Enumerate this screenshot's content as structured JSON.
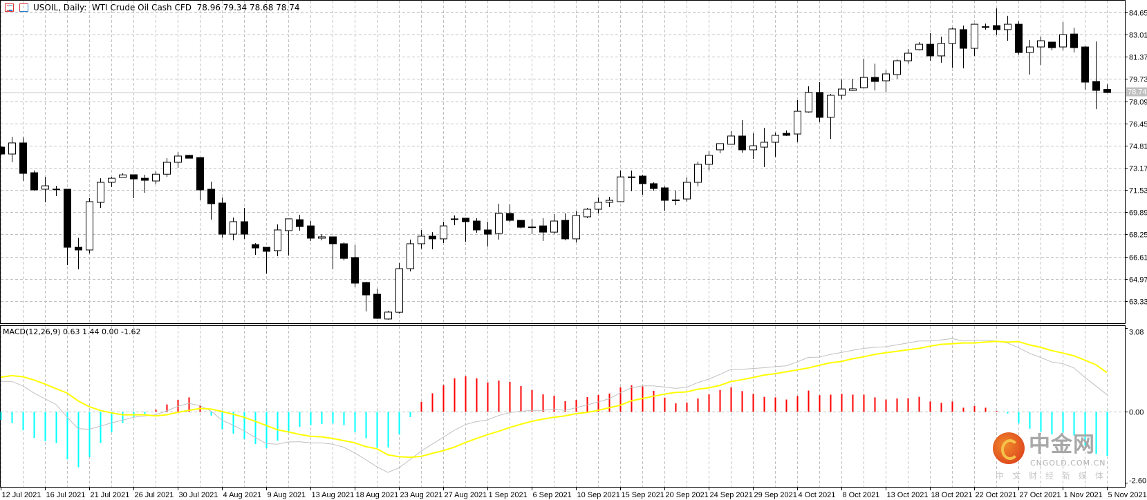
{
  "header": {
    "symbol_info": "USOIL, Daily:  WTI Crude Oil Cash CFD",
    "ohlc_readout": "78.96 79.34 78.68 78.74",
    "icons": [
      "chart-list-icon",
      "template-icon"
    ]
  },
  "colors": {
    "background": "#ffffff",
    "grid": "#c0c0c0",
    "bull_body": "#ffffff",
    "bear_body": "#000000",
    "candle_outline": "#000000",
    "price_line": "#c0c0c0",
    "histogram_positive": "#ff0000",
    "histogram_negative": "#00ffff",
    "macd_line": "#c0c0c0",
    "signal_line": "#ffff00"
  },
  "watermark": {
    "name": "中金网",
    "domain": "CNGOLD.COM.CN",
    "slogan": "中文财经新媒体"
  },
  "chart_data": [
    {
      "type": "candlestick",
      "title": "USOIL, Daily:  WTI Crude Oil Cash CFD",
      "ylim": [
        61.69,
        85.57
      ],
      "grid": true,
      "y_ticks": [
        "84.65",
        "83.01",
        "81.37",
        "79.73",
        "78.09",
        "76.45",
        "74.81",
        "73.17",
        "71.53",
        "69.89",
        "68.25",
        "66.61",
        "64.97",
        "63.33"
      ],
      "current_price": "78.74",
      "x_tick_labels": [
        "12 Jul 2021",
        "16 Jul 2021",
        "21 Jul 2021",
        "26 Jul 2021",
        "30 Jul 2021",
        "4 Aug 2021",
        "9 Aug 2021",
        "13 Aug 2021",
        "18 Aug 2021",
        "23 Aug 2021",
        "27 Aug 2021",
        "1 Sep 2021",
        "6 Sep 2021",
        "10 Sep 2021",
        "15 Sep 2021",
        "20 Sep 2021",
        "24 Sep 2021",
        "29 Sep 2021",
        "4 Oct 2021",
        "8 Oct 2021",
        "13 Oct 2021",
        "18 Oct 2021",
        "22 Oct 2021",
        "27 Oct 2021",
        "1 Nov 2021",
        "5 Nov 2021"
      ],
      "ohlc_columns": [
        "open",
        "high",
        "low",
        "close"
      ],
      "ohlc": [
        [
          74.7,
          74.8,
          74.1,
          74.19
        ],
        [
          74.19,
          75.47,
          73.58,
          75.01
        ],
        [
          75.01,
          75.42,
          72.2,
          72.76
        ],
        [
          72.81,
          72.97,
          71.49,
          71.54
        ],
        [
          71.59,
          72.5,
          70.62,
          71.84
        ],
        [
          71.6,
          71.84,
          71.08,
          71.55
        ],
        [
          71.59,
          71.6,
          65.98,
          67.3
        ],
        [
          67.3,
          68.0,
          65.67,
          67.1
        ],
        [
          67.1,
          70.93,
          66.84,
          70.67
        ],
        [
          70.62,
          72.4,
          70.21,
          72.1
        ],
        [
          72.1,
          72.5,
          71.74,
          72.4
        ],
        [
          72.46,
          72.76,
          72.46,
          72.65
        ],
        [
          72.66,
          72.66,
          70.93,
          72.35
        ],
        [
          72.4,
          72.66,
          71.33,
          72.25
        ],
        [
          72.2,
          72.9,
          71.95,
          72.7
        ],
        [
          72.7,
          73.88,
          72.5,
          73.58
        ],
        [
          73.58,
          74.34,
          73.17,
          74.04
        ],
        [
          74.09,
          74.14,
          74.0,
          73.88
        ],
        [
          73.93,
          73.95,
          70.77,
          71.54
        ],
        [
          71.59,
          72.15,
          69.34,
          70.52
        ],
        [
          70.57,
          70.98,
          68.02,
          68.27
        ],
        [
          68.27,
          69.5,
          67.81,
          69.19
        ],
        [
          69.19,
          70.21,
          67.92,
          68.27
        ],
        [
          67.5,
          67.6,
          66.74,
          67.25
        ],
        [
          67.3,
          67.3,
          65.36,
          67.0
        ],
        [
          67.05,
          68.99,
          66.64,
          68.58
        ],
        [
          68.53,
          69.4,
          66.69,
          69.4
        ],
        [
          69.34,
          69.7,
          68.53,
          68.83
        ],
        [
          68.88,
          69.24,
          67.76,
          67.97
        ],
        [
          67.97,
          68.27,
          67.81,
          68.07
        ],
        [
          68.07,
          68.1,
          65.67,
          67.56
        ],
        [
          67.56,
          67.66,
          66.33,
          66.48
        ],
        [
          66.54,
          67.46,
          64.34,
          64.65
        ],
        [
          64.7,
          64.75,
          62.56,
          63.78
        ],
        [
          63.83,
          64.24,
          62.0,
          62.05
        ],
        [
          62.0,
          62.61,
          61.95,
          62.51
        ],
        [
          62.5,
          66.13,
          62.4,
          65.72
        ],
        [
          65.72,
          67.87,
          65.52,
          67.56
        ],
        [
          67.56,
          68.58,
          67.2,
          68.12
        ],
        [
          68.12,
          68.42,
          67.15,
          67.92
        ],
        [
          67.92,
          69.19,
          67.61,
          68.88
        ],
        [
          69.35,
          69.65,
          68.93,
          69.4
        ],
        [
          69.45,
          69.45,
          67.71,
          69.19
        ],
        [
          69.24,
          69.45,
          68.37,
          68.58
        ],
        [
          68.58,
          69.19,
          67.36,
          68.27
        ],
        [
          68.32,
          70.52,
          67.87,
          69.8
        ],
        [
          69.8,
          70.47,
          69.14,
          69.29
        ],
        [
          69.29,
          69.3,
          68.7,
          68.78
        ],
        [
          68.8,
          69.39,
          68.27,
          68.75
        ],
        [
          68.88,
          69.45,
          67.76,
          68.42
        ],
        [
          68.42,
          69.75,
          68.3,
          69.24
        ],
        [
          69.29,
          69.8,
          67.81,
          67.92
        ],
        [
          67.92,
          69.96,
          67.66,
          69.65
        ],
        [
          69.55,
          70.21,
          69.45,
          70.11
        ],
        [
          70.11,
          70.98,
          69.8,
          70.62
        ],
        [
          70.62,
          71.03,
          70.26,
          70.77
        ],
        [
          70.67,
          72.97,
          70.62,
          72.5
        ],
        [
          72.45,
          72.97,
          71.44,
          72.5
        ],
        [
          72.56,
          72.66,
          71.18,
          72.0
        ],
        [
          72.0,
          72.1,
          71.49,
          71.64
        ],
        [
          71.69,
          71.8,
          70.0,
          70.77
        ],
        [
          70.8,
          71.49,
          70.41,
          70.77
        ],
        [
          70.87,
          72.46,
          70.67,
          72.1
        ],
        [
          72.1,
          73.63,
          71.8,
          73.43
        ],
        [
          73.43,
          74.4,
          72.97,
          74.09
        ],
        [
          74.5,
          74.96,
          74.24,
          74.96
        ],
        [
          74.91,
          75.88,
          74.9,
          75.52
        ],
        [
          75.52,
          76.69,
          74.29,
          74.5
        ],
        [
          74.5,
          75.72,
          73.83,
          74.8
        ],
        [
          74.7,
          76.13,
          73.22,
          75.06
        ],
        [
          75.06,
          75.78,
          73.99,
          75.57
        ],
        [
          75.72,
          75.93,
          75.52,
          75.57
        ],
        [
          75.67,
          78.17,
          75.06,
          77.35
        ],
        [
          77.3,
          79.19,
          77.25,
          78.74
        ],
        [
          78.74,
          79.5,
          76.54,
          76.9
        ],
        [
          76.9,
          78.63,
          75.3,
          78.53
        ],
        [
          78.53,
          79.7,
          78.22,
          78.99
        ],
        [
          78.89,
          79.75,
          78.85,
          79.0
        ],
        [
          79.09,
          81.23,
          79.04,
          79.85
        ],
        [
          79.85,
          80.87,
          78.89,
          79.55
        ],
        [
          79.6,
          80.41,
          78.78,
          80.11
        ],
        [
          80.06,
          81.18,
          79.75,
          81.08
        ],
        [
          81.08,
          81.95,
          80.87,
          81.64
        ],
        [
          81.9,
          82.46,
          81.85,
          82.3
        ],
        [
          82.3,
          83.12,
          81.08,
          81.44
        ],
        [
          81.44,
          82.86,
          80.93,
          82.36
        ],
        [
          82.36,
          83.53,
          80.57,
          83.43
        ],
        [
          83.38,
          83.68,
          80.52,
          82.0
        ],
        [
          82.0,
          83.83,
          81.44,
          83.78
        ],
        [
          83.6,
          83.83,
          83.38,
          83.58
        ],
        [
          83.68,
          84.95,
          82.97,
          83.38
        ],
        [
          83.38,
          84.4,
          82.56,
          83.78
        ],
        [
          83.78,
          83.99,
          81.54,
          81.69
        ],
        [
          81.69,
          82.61,
          80.06,
          82.1
        ],
        [
          82.1,
          82.86,
          80.77,
          82.56
        ],
        [
          82.46,
          82.46,
          81.85,
          82.05
        ],
        [
          82.1,
          83.94,
          81.85,
          83.01
        ],
        [
          83.06,
          83.53,
          81.69,
          82.05
        ],
        [
          82.1,
          82.15,
          78.94,
          79.5
        ],
        [
          79.55,
          82.51,
          77.5,
          78.89
        ],
        [
          78.96,
          79.34,
          78.68,
          78.74
        ]
      ]
    },
    {
      "type": "macd",
      "label": "MACD(12,26,9) 0.63 1.44 0.00 -1.62",
      "ylim": [
        -2.76,
        3.18
      ],
      "y_ticks": [
        "3.08",
        "0.00",
        "-2.60"
      ],
      "grid": true,
      "series": [
        {
          "values": [
            1.12,
            1.12,
            0.95,
            0.69,
            0.48,
            0.27,
            -0.19,
            -0.62,
            -0.64,
            -0.53,
            -0.41,
            -0.31,
            -0.2,
            -0.15,
            -0.11,
            0.03,
            0.2,
            0.31,
            0.23,
            0.03,
            -0.31,
            -0.49,
            -0.7,
            -0.94,
            -1.17,
            -1.19,
            -1.11,
            -1.1,
            -1.14,
            -1.14,
            -1.19,
            -1.3,
            -1.51,
            -1.76,
            -2.02,
            -2.23,
            -2.06,
            -1.76,
            -1.45,
            -1.19,
            -0.94,
            -0.68,
            -0.47,
            -0.36,
            -0.3,
            -0.14,
            -0.03,
            0.02,
            0.05,
            0.05,
            0.1,
            0.05,
            0.15,
            0.25,
            0.36,
            0.48,
            0.69,
            0.88,
            0.95,
            0.95,
            0.91,
            0.86,
            0.9,
            1.07,
            1.2,
            1.37,
            1.56,
            1.56,
            1.59,
            1.62,
            1.66,
            1.69,
            1.83,
            2.0,
            2.01,
            2.11,
            2.18,
            2.26,
            2.33,
            2.37,
            2.39,
            2.46,
            2.53,
            2.6,
            2.6,
            2.64,
            2.69,
            2.6,
            2.63,
            2.63,
            2.6,
            2.53,
            2.36,
            2.15,
            2.0,
            1.83,
            1.77,
            1.62,
            1.27,
            0.95,
            0.63
          ]
        },
        {
          "values": [
            1.27,
            1.33,
            1.29,
            1.17,
            1.02,
            0.85,
            0.69,
            0.4,
            0.19,
            0.05,
            -0.04,
            -0.11,
            -0.11,
            -0.11,
            -0.15,
            -0.11,
            -0.02,
            0.05,
            0.12,
            0.1,
            0.01,
            -0.09,
            -0.2,
            -0.35,
            -0.5,
            -0.66,
            -0.74,
            -0.83,
            -0.9,
            -0.92,
            -0.98,
            -1.06,
            -1.14,
            -1.28,
            -1.36,
            -1.58,
            -1.65,
            -1.67,
            -1.64,
            -1.53,
            -1.43,
            -1.3,
            -1.13,
            -0.98,
            -0.84,
            -0.72,
            -0.58,
            -0.46,
            -0.35,
            -0.27,
            -0.2,
            -0.15,
            -0.07,
            -0.02,
            0.05,
            0.15,
            0.24,
            0.4,
            0.49,
            0.57,
            0.65,
            0.71,
            0.73,
            0.83,
            0.88,
            0.97,
            1.11,
            1.18,
            1.26,
            1.35,
            1.4,
            1.47,
            1.54,
            1.61,
            1.71,
            1.8,
            1.85,
            1.95,
            2.02,
            2.11,
            2.17,
            2.22,
            2.28,
            2.33,
            2.41,
            2.48,
            2.5,
            2.53,
            2.53,
            2.56,
            2.59,
            2.56,
            2.58,
            2.46,
            2.37,
            2.25,
            2.16,
            2.06,
            1.9,
            1.73,
            1.44
          ]
        },
        {
          "values": [
            -0.3,
            -0.42,
            -0.68,
            -0.96,
            -1.08,
            -1.15,
            -1.75,
            -2.04,
            -1.66,
            -1.15,
            -0.75,
            -0.41,
            -0.19,
            -0.08,
            0.08,
            0.27,
            0.44,
            0.53,
            0.23,
            -0.14,
            -0.64,
            -0.8,
            -1.0,
            -1.19,
            -1.34,
            -1.06,
            -0.75,
            -0.55,
            -0.49,
            -0.45,
            -0.43,
            -0.49,
            -0.75,
            -0.97,
            -1.32,
            -1.31,
            -0.83,
            -0.19,
            0.37,
            0.68,
            0.98,
            1.23,
            1.31,
            1.23,
            1.08,
            1.15,
            1.1,
            0.95,
            0.8,
            0.64,
            0.59,
            0.39,
            0.44,
            0.54,
            0.62,
            0.67,
            0.9,
            0.97,
            0.93,
            0.77,
            0.52,
            0.31,
            0.34,
            0.49,
            0.64,
            0.8,
            0.9,
            0.76,
            0.66,
            0.55,
            0.53,
            0.45,
            0.58,
            0.78,
            0.61,
            0.63,
            0.66,
            0.63,
            0.63,
            0.53,
            0.45,
            0.49,
            0.5,
            0.55,
            0.38,
            0.33,
            0.38,
            0.15,
            0.21,
            0.15,
            0.03,
            -0.06,
            -0.43,
            -0.62,
            -0.73,
            -0.83,
            -0.77,
            -0.87,
            -1.25,
            -1.55,
            -1.62
          ]
        }
      ]
    }
  ]
}
